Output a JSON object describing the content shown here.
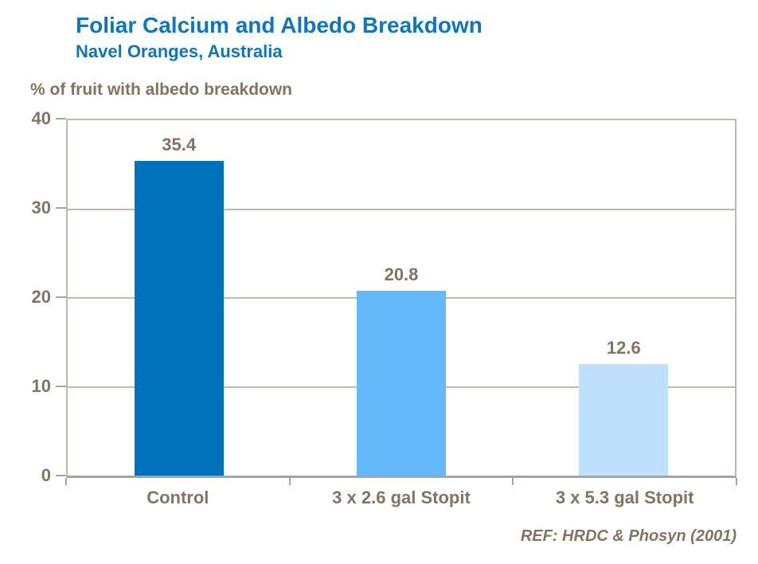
{
  "header": {
    "title": "Foliar Calcium and Albedo Breakdown",
    "subtitle": "Navel Oranges, Australia",
    "title_color": "#0a76c5"
  },
  "chart_data": {
    "type": "bar",
    "title": "Foliar Calcium and Albedo Breakdown",
    "subtitle": "Navel Oranges, Australia",
    "ylabel": "% of fruit with albedo breakdown",
    "xlabel": "",
    "categories": [
      "Control",
      "3 x 2.6 gal Stopit",
      "3 x 5.3 gal Stopit"
    ],
    "values": [
      35.4,
      20.8,
      12.6
    ],
    "data_labels": [
      "35.4",
      "20.8",
      "12.6"
    ],
    "bar_colors": [
      "#0072bc",
      "#63b9fa",
      "#bde0fc"
    ],
    "ylim": [
      0,
      40
    ],
    "yticks": [
      0,
      10,
      20,
      30,
      40
    ],
    "grid": true,
    "legend_position": "none"
  },
  "footer": {
    "reference": "REF: HRDC & Phosyn (2001)"
  },
  "colors": {
    "title_blue": "#0a76c5",
    "text_brown": "#857361",
    "axis_line": "#aba49e",
    "plot_border": "#c2b8ab",
    "gridline": "#c5baa9",
    "background": "#ffffff"
  }
}
